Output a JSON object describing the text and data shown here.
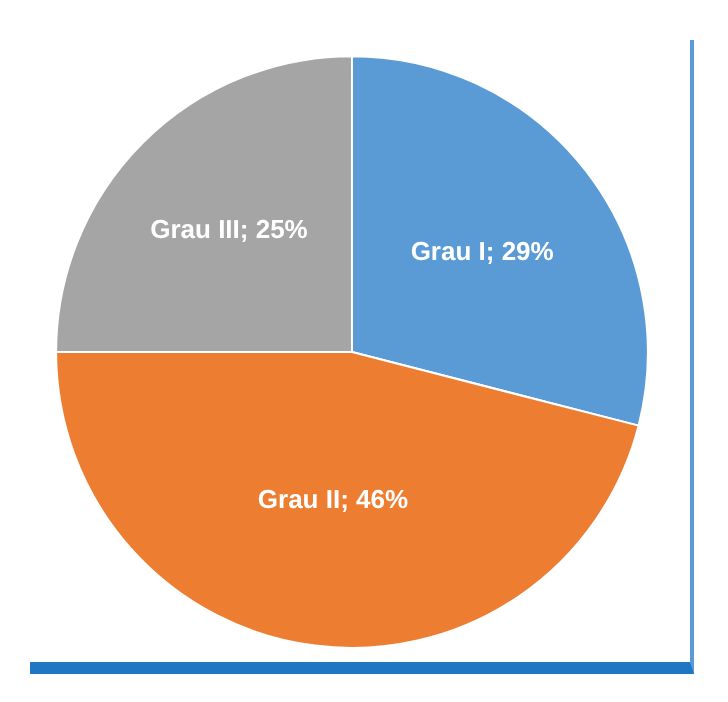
{
  "chart_data": {
    "type": "pie",
    "categories": [
      "Grau I",
      "Grau II",
      "Grau III"
    ],
    "values": [
      29,
      46,
      25
    ],
    "colors": [
      "#5b9bd5",
      "#ed7d31",
      "#a5a5a5"
    ],
    "value_labels": [
      "29%",
      "46%",
      "25%"
    ],
    "legend": false
  }
}
